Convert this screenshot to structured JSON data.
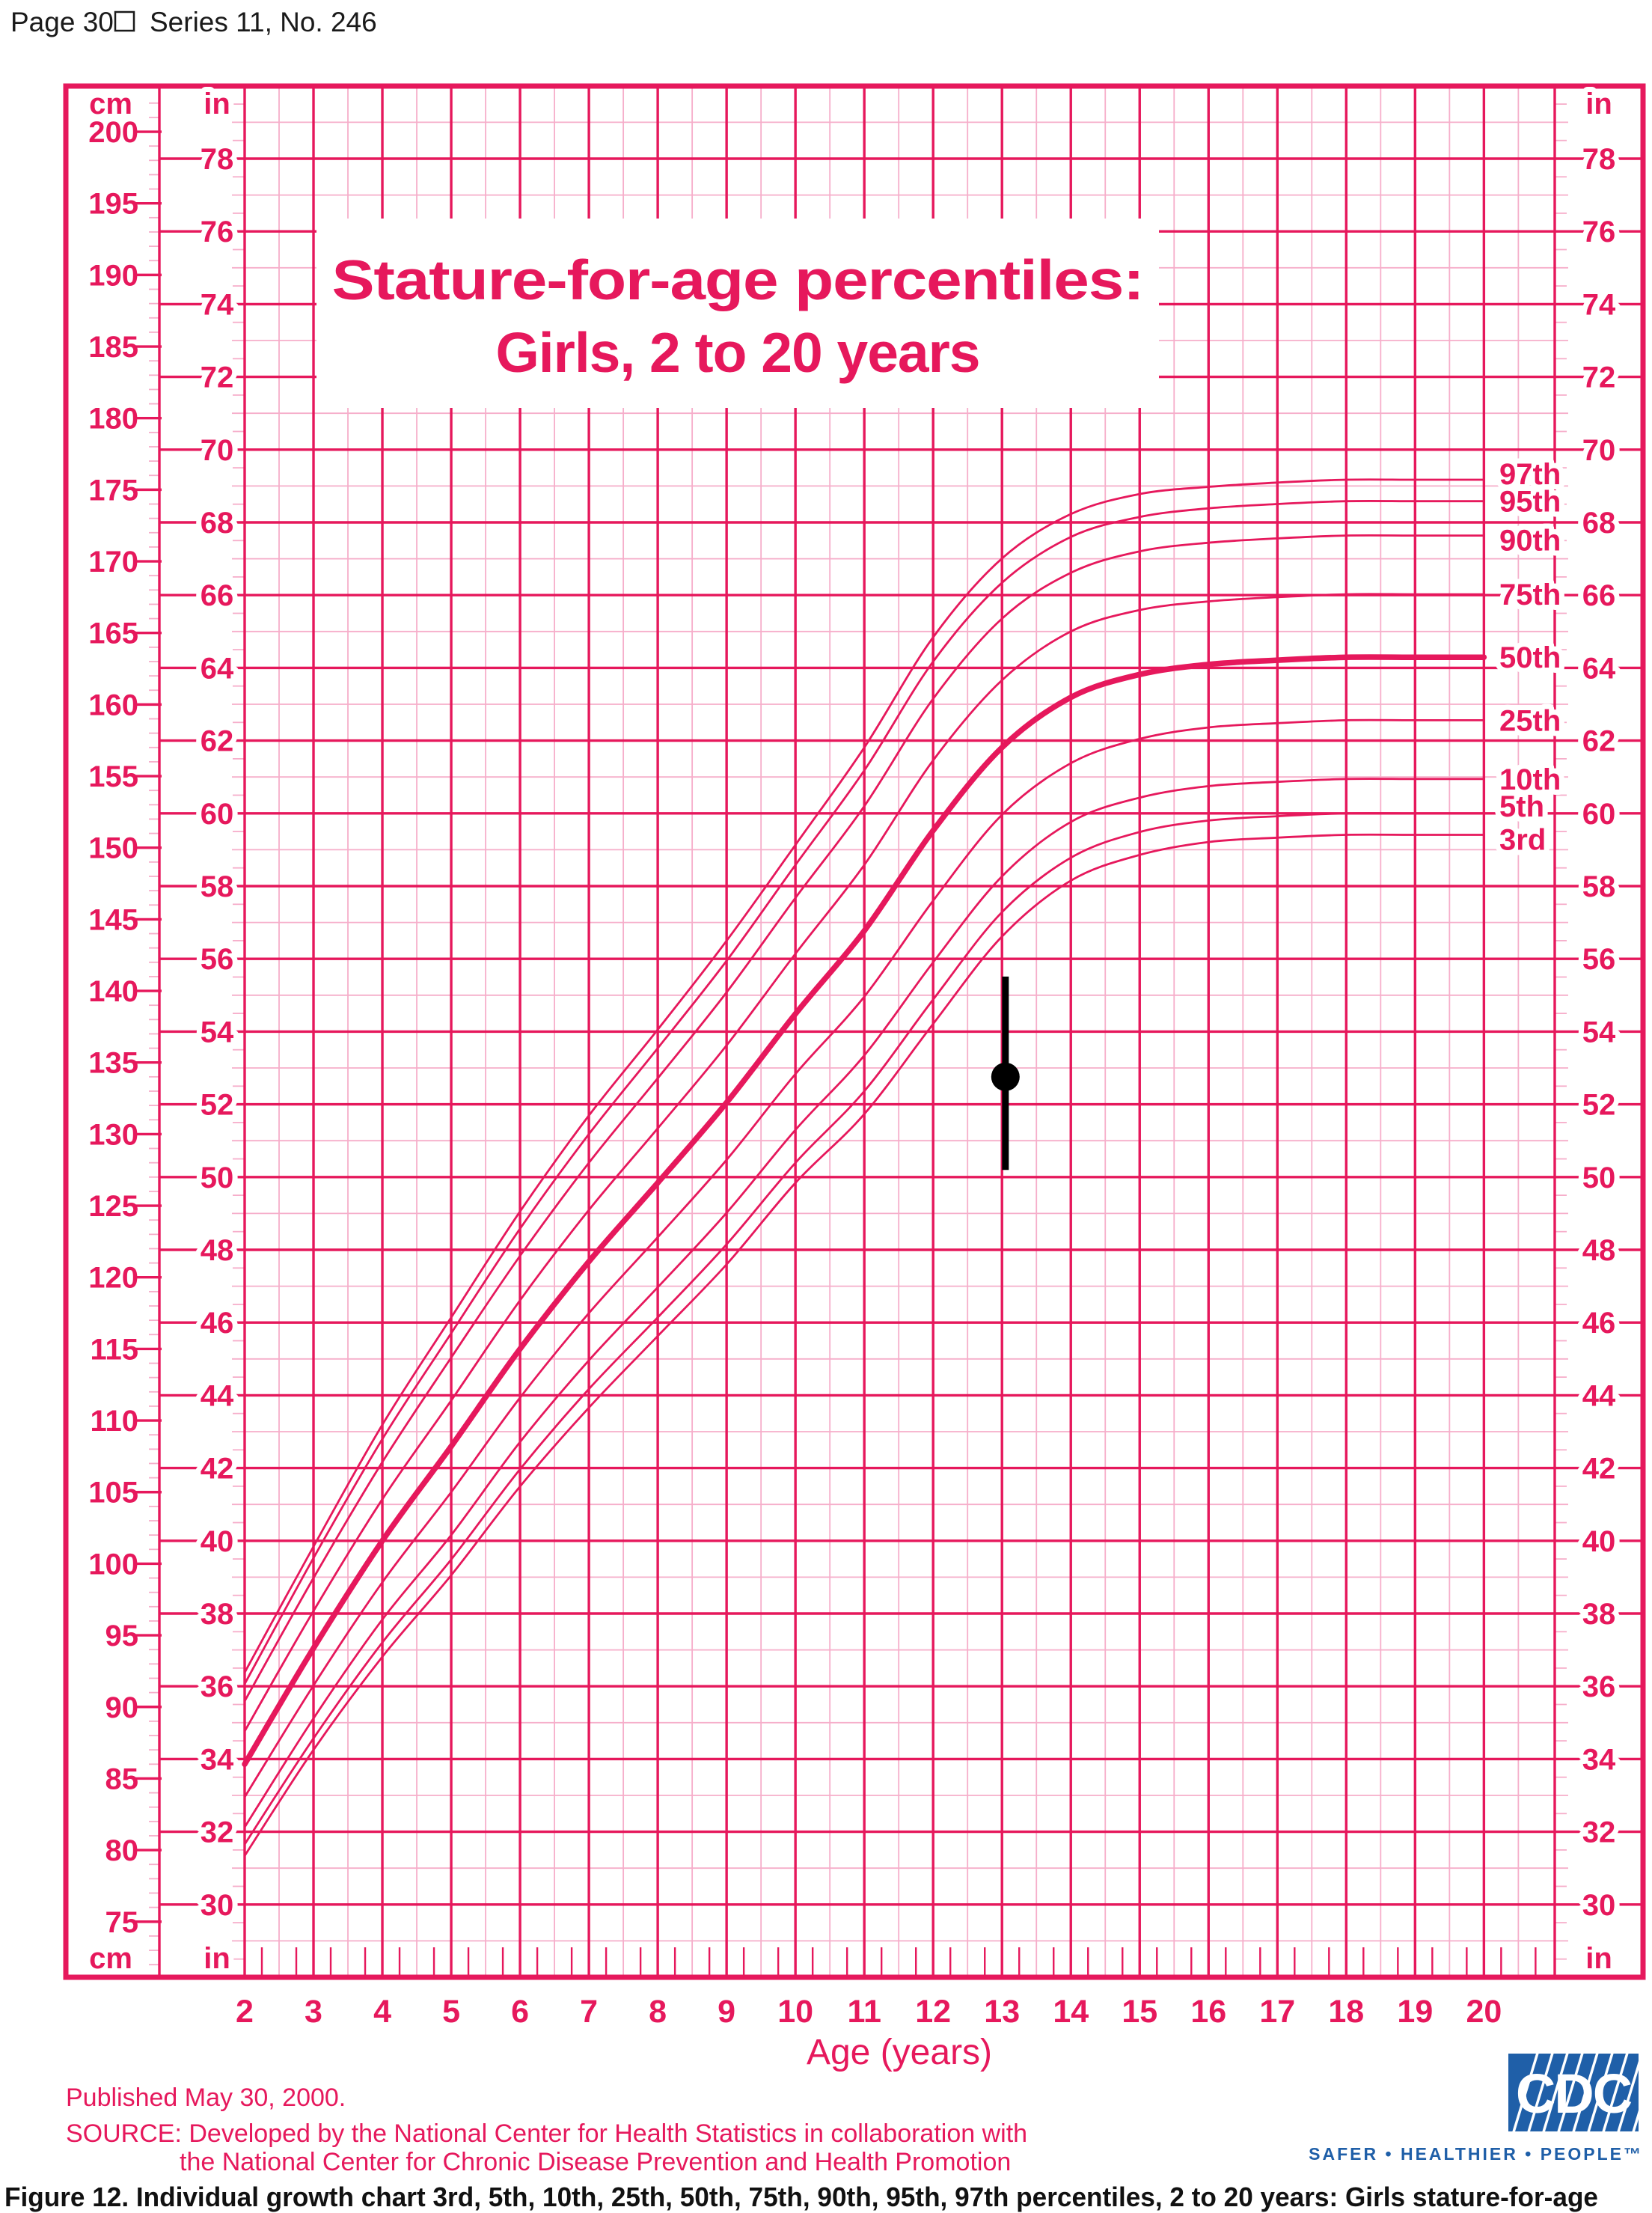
{
  "page_header": {
    "page_label": "Page 30",
    "series_label": "Series 11, No. 246"
  },
  "caption": "Figure 12. Individual growth chart 3rd, 5th, 10th, 25th, 50th, 75th, 90th, 95th, 97th percentiles, 2 to 20 years: Girls stature-for-age",
  "footer": {
    "published": "Published May 30, 2000.",
    "source_line1": "SOURCE: Developed by the National Center for Health Statistics in collaboration with",
    "source_line2": "the National Center for Chronic Disease Prevention and Health Promotion"
  },
  "logo": {
    "text": "CDC",
    "tagline": "SAFER • HEALTHIER • PEOPLE™",
    "color": "#1F5FA8"
  },
  "chart_data": {
    "type": "line",
    "title_line1": "Stature-for-age percentiles:",
    "title_line2": "Girls, 2 to 20 years",
    "xlabel": "Age (years)",
    "y_unit_primary": "cm",
    "y_unit_secondary": "in",
    "xlim": [
      2,
      21
    ],
    "ylim_cm": [
      71.1,
      203.2
    ],
    "x_ticks": [
      2,
      3,
      4,
      5,
      6,
      7,
      8,
      9,
      10,
      11,
      12,
      13,
      14,
      15,
      16,
      17,
      18,
      19,
      20
    ],
    "y_ticks_cm": [
      75,
      80,
      85,
      90,
      95,
      100,
      105,
      110,
      115,
      120,
      125,
      130,
      135,
      140,
      145,
      150,
      155,
      160,
      165,
      170,
      175,
      180,
      185,
      190,
      195,
      200
    ],
    "y_ticks_in": [
      30,
      32,
      34,
      36,
      38,
      40,
      42,
      44,
      46,
      48,
      50,
      52,
      54,
      56,
      58,
      60,
      62,
      64,
      66,
      68,
      70,
      72,
      74,
      76,
      78
    ],
    "grid": {
      "x_major_every_years": 1,
      "x_minor_every_years": 0.5,
      "x_tick_every_years": 0.25,
      "y_major_every_in": 2,
      "y_minor_every_in": 1,
      "y_margin_tick_every_in": 0.5,
      "cm_tick_every": 1,
      "cm_labeled_tick_every": 5
    },
    "legend_position": "right of curve ends, inside grid",
    "x": [
      2,
      3,
      4,
      5,
      6,
      7,
      8,
      9,
      10,
      11,
      12,
      13,
      14,
      15,
      16,
      17,
      18,
      19,
      20
    ],
    "series": [
      {
        "name": "97th",
        "label_dy": -8,
        "emphasis": false,
        "values": [
          92.4,
          101.2,
          109.7,
          117.2,
          124.6,
          131.3,
          137.3,
          143.5,
          150.2,
          157.0,
          164.7,
          170.2,
          173.3,
          174.7,
          175.2,
          175.5,
          175.7,
          175.7,
          175.7
        ]
      },
      {
        "name": "95th",
        "label_dy": 0,
        "emphasis": false,
        "values": [
          91.6,
          100.4,
          108.7,
          116.1,
          123.4,
          130.0,
          136.0,
          142.1,
          148.8,
          155.4,
          163.0,
          168.5,
          171.7,
          173.1,
          173.7,
          174.0,
          174.2,
          174.2,
          174.2
        ]
      },
      {
        "name": "90th",
        "label_dy": 6,
        "emphasis": false,
        "values": [
          90.4,
          99.0,
          107.1,
          114.4,
          121.5,
          128.0,
          133.9,
          139.9,
          146.5,
          152.9,
          160.4,
          166.0,
          169.2,
          170.7,
          171.3,
          171.6,
          171.8,
          171.8,
          171.8
        ]
      },
      {
        "name": "75th",
        "label_dy": 0,
        "emphasis": false,
        "values": [
          88.3,
          96.7,
          104.5,
          111.4,
          118.4,
          124.7,
          130.4,
          136.2,
          142.6,
          148.8,
          156.1,
          161.7,
          165.1,
          166.6,
          167.2,
          167.5,
          167.7,
          167.7,
          167.7
        ]
      },
      {
        "name": "50th",
        "label_dy": 0,
        "emphasis": true,
        "values": [
          86.0,
          94.1,
          101.6,
          108.2,
          115.0,
          121.1,
          126.6,
          132.2,
          138.4,
          144.2,
          151.2,
          157.0,
          160.5,
          162.1,
          162.8,
          163.1,
          163.3,
          163.3,
          163.3
        ]
      },
      {
        "name": "25th",
        "label_dy": 0,
        "emphasis": false,
        "values": [
          83.7,
          91.5,
          98.7,
          105.0,
          111.6,
          117.5,
          122.8,
          128.2,
          134.2,
          139.6,
          146.3,
          152.3,
          155.9,
          157.6,
          158.4,
          158.7,
          158.9,
          158.9,
          158.9
        ]
      },
      {
        "name": "10th",
        "label_dy": 0,
        "emphasis": false,
        "values": [
          81.6,
          89.2,
          96.1,
          102.0,
          108.5,
          114.2,
          119.3,
          124.5,
          130.3,
          135.5,
          142.0,
          148.0,
          151.8,
          153.5,
          154.3,
          154.6,
          154.8,
          154.8,
          154.8
        ]
      },
      {
        "name": "5th",
        "label_dy": -10,
        "emphasis": false,
        "values": [
          80.4,
          87.8,
          94.5,
          100.3,
          106.6,
          112.2,
          117.2,
          122.3,
          128.0,
          133.0,
          139.4,
          145.5,
          149.3,
          151.1,
          151.9,
          152.2,
          152.4,
          152.4,
          152.4
        ]
      },
      {
        "name": "3rd",
        "label_dy": 6,
        "emphasis": false,
        "values": [
          79.6,
          87.0,
          93.5,
          99.2,
          105.4,
          110.9,
          115.9,
          120.9,
          126.6,
          131.4,
          137.7,
          143.8,
          147.7,
          149.5,
          150.4,
          150.7,
          150.9,
          150.9,
          150.9
        ]
      }
    ],
    "patient_point": {
      "age": 13.05,
      "stature_cm": 134.0,
      "range_low_cm": 127.5,
      "range_high_cm": 141.0
    },
    "colors": {
      "primary": "#E6185C",
      "grid_light": "#F6AECA",
      "marker": "#000000",
      "logo_blue": "#1F5FA8",
      "text_black": "#1A1A1A"
    }
  }
}
